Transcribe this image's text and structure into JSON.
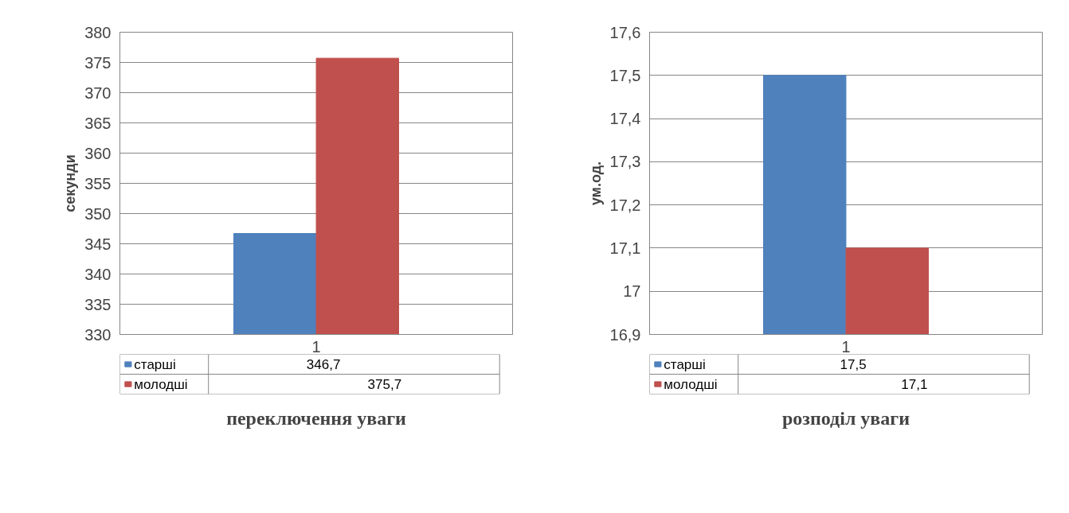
{
  "chart_data": [
    {
      "type": "bar",
      "title": "переключення уваги",
      "ylabel": "секунди",
      "categories": [
        "1"
      ],
      "series": [
        {
          "name": "старші",
          "color": "#4f81bd",
          "values": [
            346.7
          ],
          "value_labels": [
            "346,7"
          ]
        },
        {
          "name": "молодші",
          "color": "#c0504d",
          "values": [
            375.7
          ],
          "value_labels": [
            "375,7"
          ]
        }
      ],
      "ylim": [
        330,
        380
      ],
      "yticks": [
        330,
        335,
        340,
        345,
        350,
        355,
        360,
        365,
        370,
        375,
        380
      ],
      "grid": "y",
      "legend": "bottom"
    },
    {
      "type": "bar",
      "title": "розподіл уваги",
      "ylabel": "ум.од.",
      "categories": [
        "1"
      ],
      "series": [
        {
          "name": "старші",
          "color": "#4f81bd",
          "values": [
            17.5
          ],
          "value_labels": [
            "17,5"
          ]
        },
        {
          "name": "молодші",
          "color": "#c0504d",
          "values": [
            17.1
          ],
          "value_labels": [
            "17,1"
          ]
        }
      ],
      "ylim": [
        16.9,
        17.6
      ],
      "yticks": [
        {
          "value": 16.9,
          "label": "16,9"
        },
        {
          "value": 17,
          "label": "17"
        },
        {
          "value": 17.1,
          "label": "17,1"
        },
        {
          "value": 17.2,
          "label": "17,2"
        },
        {
          "value": 17.3,
          "label": "17,3"
        },
        {
          "value": 17.4,
          "label": "17,4"
        },
        {
          "value": 17.5,
          "label": "17,5"
        },
        {
          "value": 17.6,
          "label": "17,6"
        }
      ],
      "grid": "y",
      "legend": "bottom"
    }
  ]
}
